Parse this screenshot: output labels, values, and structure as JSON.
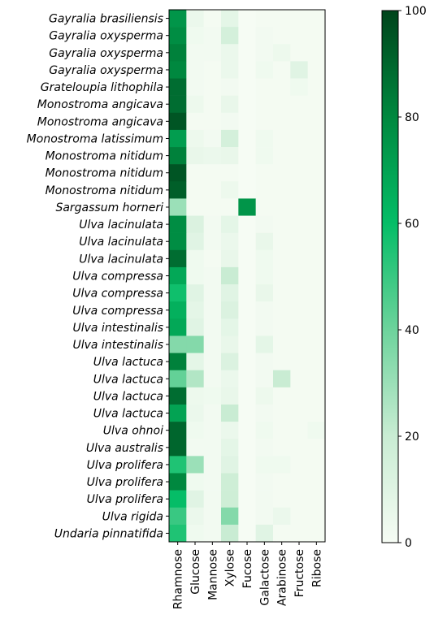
{
  "chart_data": {
    "type": "heatmap",
    "x_categories": [
      "Rhamnose",
      "Glucose",
      "Mannose",
      "Xylose",
      "Fucose",
      "Galactose",
      "Arabinose",
      "Fructose",
      "Ribose"
    ],
    "y_categories": [
      "Gayralia brasiliensis",
      "Gayralia oxysperma",
      "Gayralia oxysperma",
      "Gayralia oxysperma",
      "Grateloupia lithophila",
      "Monostroma angicava",
      "Monostroma angicava",
      "Monostroma latissimum",
      "Monostroma nitidum",
      "Monostroma nitidum",
      "Monostroma nitidum",
      "Sargassum horneri",
      "Ulva lacinulata",
      "Ulva lacinulata",
      "Ulva lacinulata",
      "Ulva compressa",
      "Ulva compressa",
      "Ulva compressa",
      "Ulva intestinalis",
      "Ulva intestinalis",
      "Ulva lactuca",
      "Ulva lactuca",
      "Ulva lactuca",
      "Ulva lactuca",
      "Ulva ohnoi",
      "Ulva australis",
      "Ulva prolifera",
      "Ulva prolifera",
      "Ulva prolifera",
      "Ulva rigida",
      "Undaria pinnatifida"
    ],
    "values": [
      [
        75,
        5,
        1,
        8,
        0,
        1,
        1,
        1,
        1
      ],
      [
        78,
        3,
        2,
        15,
        0,
        2,
        1,
        1,
        1
      ],
      [
        82,
        2,
        2,
        5,
        0,
        2,
        4,
        1,
        1
      ],
      [
        80,
        2,
        1,
        5,
        0,
        3,
        1,
        10,
        1
      ],
      [
        88,
        2,
        1,
        2,
        0,
        1,
        1,
        3,
        1
      ],
      [
        88,
        4,
        1,
        6,
        0,
        1,
        1,
        1,
        1
      ],
      [
        95,
        1,
        1,
        2,
        0,
        1,
        1,
        1,
        1
      ],
      [
        72,
        4,
        2,
        15,
        0,
        3,
        1,
        1,
        1
      ],
      [
        82,
        6,
        5,
        6,
        0,
        3,
        1,
        1,
        1
      ],
      [
        95,
        1,
        1,
        1,
        0,
        1,
        1,
        1,
        1
      ],
      [
        92,
        1,
        1,
        4,
        0,
        1,
        1,
        1,
        1
      ],
      [
        30,
        1,
        1,
        1,
        75,
        1,
        1,
        1,
        1
      ],
      [
        78,
        12,
        2,
        8,
        0,
        2,
        1,
        1,
        1
      ],
      [
        78,
        10,
        2,
        5,
        0,
        6,
        1,
        1,
        1
      ],
      [
        88,
        3,
        1,
        6,
        0,
        3,
        1,
        1,
        1
      ],
      [
        68,
        3,
        2,
        20,
        0,
        3,
        1,
        1,
        1
      ],
      [
        58,
        10,
        2,
        10,
        0,
        6,
        1,
        1,
        1
      ],
      [
        65,
        8,
        2,
        12,
        0,
        2,
        1,
        1,
        1
      ],
      [
        68,
        10,
        2,
        8,
        0,
        2,
        1,
        1,
        1
      ],
      [
        35,
        35,
        2,
        6,
        0,
        8,
        1,
        1,
        1
      ],
      [
        82,
        8,
        2,
        12,
        0,
        2,
        1,
        1,
        1
      ],
      [
        42,
        25,
        2,
        5,
        0,
        2,
        20,
        1,
        1
      ],
      [
        88,
        4,
        3,
        6,
        0,
        4,
        1,
        1,
        1
      ],
      [
        70,
        5,
        2,
        20,
        0,
        2,
        1,
        1,
        1
      ],
      [
        90,
        3,
        2,
        5,
        0,
        3,
        1,
        1,
        3
      ],
      [
        90,
        2,
        2,
        8,
        0,
        2,
        1,
        1,
        1
      ],
      [
        55,
        30,
        2,
        10,
        0,
        3,
        3,
        1,
        1
      ],
      [
        80,
        3,
        2,
        18,
        0,
        2,
        1,
        1,
        1
      ],
      [
        60,
        10,
        2,
        18,
        0,
        2,
        1,
        1,
        1
      ],
      [
        50,
        5,
        2,
        35,
        0,
        2,
        5,
        1,
        1
      ],
      [
        55,
        3,
        2,
        20,
        0,
        10,
        1,
        1,
        1
      ]
    ],
    "zlim": [
      0,
      100
    ],
    "zticks": [
      0,
      20,
      40,
      60,
      80,
      100
    ],
    "colormap": [
      "#f6fcf4",
      "#c9ecd3",
      "#6dd39c",
      "#05bd67",
      "#00883f",
      "#00441b"
    ]
  }
}
